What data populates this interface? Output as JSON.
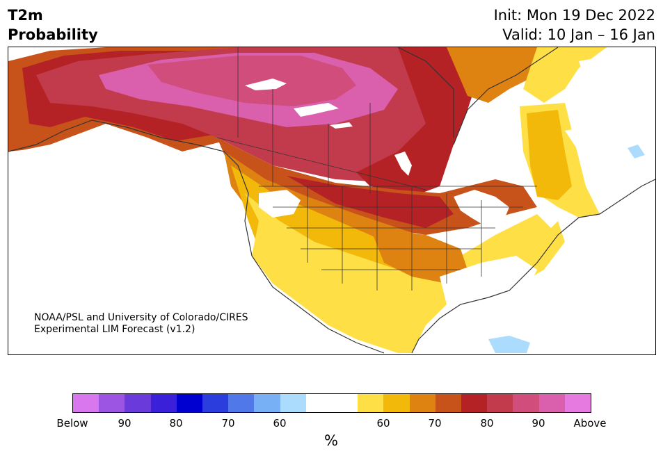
{
  "title": {
    "line1": "T2m",
    "line2": "Probability"
  },
  "init": "Init: Mon 19 Dec 2022",
  "valid": "Valid: 10 Jan – 16 Jan",
  "credit": {
    "line1": "NOAA/PSL and University of Colorado/CIRES",
    "line2": "Experimental LIM Forecast (v1.2)"
  },
  "colorbar": {
    "colors": [
      "#d877ee",
      "#9c55e3",
      "#6b3adb",
      "#3a20d8",
      "#0000d0",
      "#2b3ddc",
      "#5178e8",
      "#78b0f5",
      "#acdcfd",
      "#ffffff",
      "#ffffff",
      "#fee046",
      "#f2b90a",
      "#de8312",
      "#c8531a",
      "#b52225",
      "#c23b4c",
      "#d04d7c",
      "#da5fac",
      "#e67ae0"
    ],
    "tick_labels": [
      "Below",
      "90",
      "80",
      "70",
      "60",
      "60",
      "70",
      "80",
      "90",
      "Above"
    ],
    "unit": "%"
  },
  "map_colors": {
    "land_neutral": "#ffffff",
    "c60": "#fee046",
    "c70": "#f2b90a",
    "c75": "#de8312",
    "c80": "#c8531a",
    "c85": "#b52225",
    "c90": "#c23b4c",
    "c95": "#d04d7c",
    "above": "#da5fac",
    "cold_light": "#acdcfd",
    "coast": "#333333"
  }
}
